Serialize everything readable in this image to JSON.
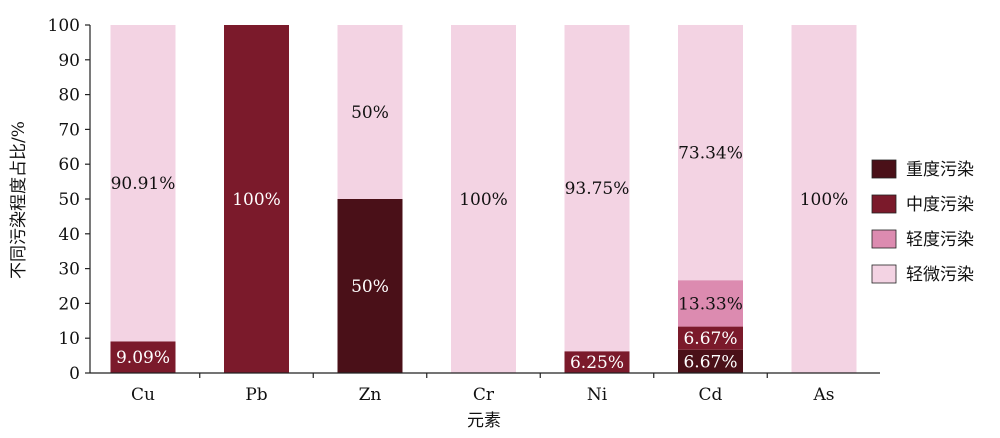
{
  "chart_data": {
    "type": "bar",
    "stacked": true,
    "xlabel": "元素",
    "ylabel": "不同污染程度占比/%",
    "ylim": [
      0,
      100
    ],
    "yticks": [
      0,
      10,
      20,
      30,
      40,
      50,
      60,
      70,
      80,
      90,
      100
    ],
    "categories": [
      "Cu",
      "Pb",
      "Zn",
      "Cr",
      "Ni",
      "Cd",
      "As"
    ],
    "series": [
      {
        "name": "重度污染",
        "color": "#4a1018",
        "values": [
          0,
          0,
          50,
          0,
          0,
          6.67,
          0
        ],
        "labels": [
          "",
          "",
          "50%",
          "",
          "",
          "6.67%",
          ""
        ]
      },
      {
        "name": "中度污染",
        "color": "#7b1a2b",
        "values": [
          9.09,
          100,
          0,
          0,
          6.25,
          6.67,
          0
        ],
        "labels": [
          "9.09%",
          "100%",
          "",
          "",
          "6.25%",
          "6.67%",
          ""
        ]
      },
      {
        "name": "轻度污染",
        "color": "#dc8bb0",
        "values": [
          0,
          0,
          0,
          0,
          0,
          13.33,
          0
        ],
        "labels": [
          "",
          "",
          "",
          "",
          "",
          "13.33%",
          ""
        ]
      },
      {
        "name": "轻微污染",
        "color": "#f3d3e3",
        "values": [
          90.91,
          0,
          50,
          100,
          93.75,
          73.34,
          100
        ],
        "labels": [
          "90.91%",
          "",
          "50%",
          "100%",
          "93.75%",
          "73.34%",
          "100%"
        ]
      }
    ],
    "legend": "right",
    "grid": false
  }
}
